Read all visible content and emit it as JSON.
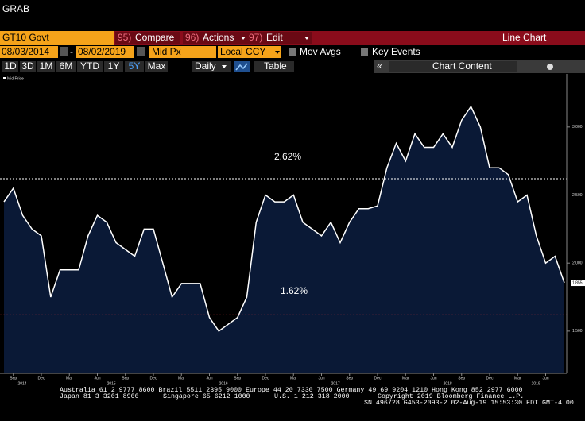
{
  "header": {
    "title": "GRAB"
  },
  "toolbar": {
    "security": "GT10 Govt",
    "menu": [
      {
        "key": "95)",
        "label": "Compare"
      },
      {
        "key": "96)",
        "label": "Actions"
      },
      {
        "key": "97)",
        "label": "Edit"
      }
    ],
    "view": "Line Chart",
    "start_date": "08/03/2014",
    "separator": "-",
    "end_date": "08/02/2019",
    "field": "Mid Px",
    "currency": "Local CCY",
    "options": [
      "Mov Avgs",
      "Key Events"
    ],
    "periods": [
      "1D",
      "3D",
      "1M",
      "6M",
      "YTD",
      "1Y",
      "5Y",
      "Max"
    ],
    "active_period": 6,
    "frequency": "Daily",
    "table": "Table",
    "panel_arrow": "«",
    "chart_content": "Chart Content"
  },
  "chart_data": {
    "type": "line",
    "series": [
      {
        "name": "Mid Price",
        "color": "#ffffff",
        "fill": "#0a1936",
        "values": [
          2.45,
          2.55,
          2.35,
          2.25,
          2.2,
          1.75,
          1.95,
          1.95,
          1.95,
          2.2,
          2.35,
          2.3,
          2.15,
          2.1,
          2.05,
          2.25,
          2.25,
          2.0,
          1.75,
          1.85,
          1.85,
          1.85,
          1.6,
          1.5,
          1.55,
          1.6,
          1.75,
          2.3,
          2.5,
          2.45,
          2.45,
          2.5,
          2.3,
          2.25,
          2.2,
          2.3,
          2.15,
          2.3,
          2.4,
          2.4,
          2.42,
          2.7,
          2.88,
          2.75,
          2.95,
          2.85,
          2.85,
          2.95,
          2.85,
          3.05,
          3.15,
          3.0,
          2.7,
          2.7,
          2.65,
          2.45,
          2.5,
          2.2,
          2.0,
          2.05,
          1.855
        ]
      }
    ],
    "ylim": [
      1.19,
      3.39
    ],
    "yticks": [
      {
        "value": 1.5,
        "label": "1.500"
      },
      {
        "value": 2,
        "label": "2.000"
      },
      {
        "value": 2.5,
        "label": "2.500"
      },
      {
        "value": 3,
        "label": "3.000"
      }
    ],
    "xtick_labels": [
      "Sep",
      "Dec",
      "Mar",
      "Jun",
      "Sep",
      "Dec",
      "Mar",
      "Jun",
      "Sep",
      "Dec",
      "Mar",
      "Jun",
      "Sep",
      "Dec",
      "Mar",
      "Jun",
      "Sep",
      "Dec",
      "Mar",
      "Jun"
    ],
    "year_labels": [
      "2014",
      "2015",
      "2016",
      "2017",
      "2018",
      "2019"
    ],
    "annotations": [
      {
        "text": "2.62%",
        "value": 2.62,
        "color": "#ffffff"
      },
      {
        "text": "1.62%",
        "value": 1.62,
        "color": "#e0303a"
      }
    ]
  },
  "footer": {
    "lines": [
      "Australia 61 2 9777 8600 Brazil 5511 2395 9000 Europe 44 20 7330 7500 Germany 49 69 9204 1210 Hong Kong 852 2977 6000"
    ],
    "line2": [
      "Japan 81 3 3201 8900",
      "Singapore 65 6212 1000",
      "U.S. 1 212 318 2000",
      "Copyright 2019 Bloomberg Finance L.P."
    ],
    "line3": "SN 496728 G453-2093-2 02-Aug-19 15:53:30 EDT  GMT-4:00"
  }
}
